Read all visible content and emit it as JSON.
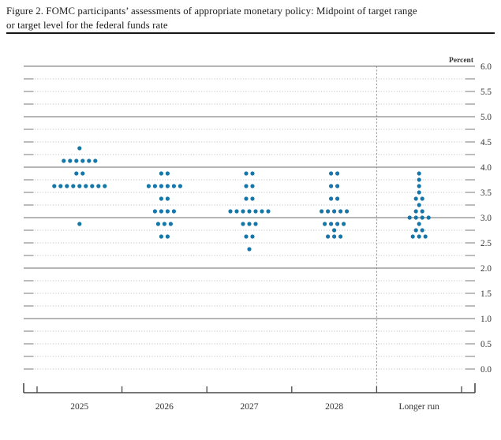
{
  "figure": {
    "title_line1": "Figure 2. FOMC participants’ assessments of appropriate monetary policy: Midpoint of target range",
    "title_line2": "or target level for the federal funds rate"
  },
  "chart_data": {
    "type": "scatter",
    "subtype": "fomc-dot-plot",
    "title": "Figure 2. FOMC participants’ assessments of appropriate monetary policy: Midpoint of target range or target level for the federal funds rate",
    "unit_label": "Percent",
    "x_categories": [
      "2025",
      "2026",
      "2027",
      "2028",
      "Longer run"
    ],
    "y_axis": {
      "min": 0.0,
      "max": 6.0,
      "gridline_step": 0.25,
      "label_step": 0.5,
      "tick_labels": [
        "6.0",
        "5.5",
        "5.0",
        "4.5",
        "4.0",
        "3.5",
        "3.0",
        "2.5",
        "2.0",
        "1.5",
        "1.0",
        "0.5",
        "0.0"
      ],
      "labels_side": "right"
    },
    "legend": "none",
    "grid": "dotted quarter-percent lines, solid darker lines at integer percents",
    "separator": {
      "type": "dashed-vertical-line",
      "before_category": "Longer run"
    },
    "dots_per_column": 19,
    "series": [
      {
        "category": "2025",
        "dots": [
          [
            4.375,
            1
          ],
          [
            4.125,
            6
          ],
          [
            3.875,
            2
          ],
          [
            3.625,
            9
          ],
          [
            2.875,
            1
          ]
        ]
      },
      {
        "category": "2026",
        "dots": [
          [
            3.875,
            2
          ],
          [
            3.625,
            6
          ],
          [
            3.375,
            2
          ],
          [
            3.125,
            4
          ],
          [
            2.875,
            3
          ],
          [
            2.625,
            2
          ]
        ]
      },
      {
        "category": "2027",
        "dots": [
          [
            3.875,
            2
          ],
          [
            3.625,
            2
          ],
          [
            3.375,
            2
          ],
          [
            3.125,
            7
          ],
          [
            2.875,
            3
          ],
          [
            2.625,
            2
          ],
          [
            2.375,
            1
          ]
        ]
      },
      {
        "category": "2028",
        "dots": [
          [
            3.875,
            2
          ],
          [
            3.625,
            2
          ],
          [
            3.375,
            2
          ],
          [
            3.125,
            5
          ],
          [
            2.875,
            4
          ],
          [
            2.75,
            1
          ],
          [
            2.625,
            3
          ]
        ]
      },
      {
        "category": "Longer run",
        "dots": [
          [
            3.875,
            1
          ],
          [
            3.75,
            1
          ],
          [
            3.625,
            1
          ],
          [
            3.5,
            1
          ],
          [
            3.375,
            2
          ],
          [
            3.25,
            1
          ],
          [
            3.125,
            2
          ],
          [
            3.0,
            4
          ],
          [
            2.875,
            1
          ],
          [
            2.75,
            2
          ],
          [
            2.625,
            3
          ]
        ]
      }
    ],
    "colors": {
      "dot": "#1577A8",
      "grid_minor": "#b9b9b9",
      "grid_major": "#8a8a8a",
      "tick": "#8f8f8f",
      "axis": "#4a4a4a",
      "text": "#333333",
      "title_text": "#1a1a1a",
      "separator_line": "#8a8a8a"
    }
  }
}
